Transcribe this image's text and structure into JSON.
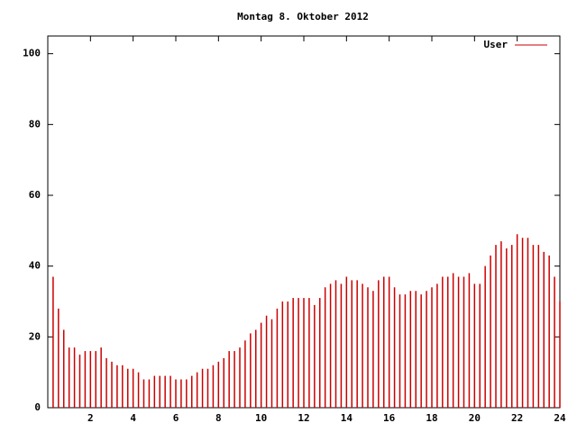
{
  "chart_data": {
    "type": "impulse",
    "title": "Montag 8. Oktober 2012",
    "x": [
      0.25,
      0.5,
      0.75,
      1,
      1.25,
      1.5,
      1.75,
      2,
      2.25,
      2.5,
      2.75,
      3,
      3.25,
      3.5,
      3.75,
      4,
      4.25,
      4.5,
      4.75,
      5,
      5.25,
      5.5,
      5.75,
      6,
      6.25,
      6.5,
      6.75,
      7,
      7.25,
      7.5,
      7.75,
      8,
      8.25,
      8.5,
      8.75,
      9,
      9.25,
      9.5,
      9.75,
      10,
      10.25,
      10.5,
      10.75,
      11,
      11.25,
      11.5,
      11.75,
      12,
      12.25,
      12.5,
      12.75,
      13,
      13.25,
      13.5,
      13.75,
      14,
      14.25,
      14.5,
      14.75,
      15,
      15.25,
      15.5,
      15.75,
      16,
      16.25,
      16.5,
      16.75,
      17,
      17.25,
      17.5,
      17.75,
      18,
      18.25,
      18.5,
      18.75,
      19,
      19.25,
      19.5,
      19.75,
      20,
      20.25,
      20.5,
      20.75,
      21,
      21.25,
      21.5,
      21.75,
      22,
      22.25,
      22.5,
      22.75,
      23,
      23.25,
      23.5,
      23.75,
      24
    ],
    "series": [
      {
        "name": "User",
        "color": "#cc0000",
        "values": [
          37,
          28,
          22,
          17,
          17,
          15,
          16,
          16,
          16,
          17,
          14,
          13,
          12,
          12,
          11,
          11,
          10,
          8,
          8,
          9,
          9,
          9,
          9,
          8,
          8,
          8,
          9,
          10,
          11,
          11,
          12,
          13,
          14,
          16,
          16,
          17,
          19,
          21,
          22,
          24,
          26,
          25,
          28,
          30,
          30,
          31,
          31,
          31,
          31,
          29,
          31,
          34,
          35,
          36,
          35,
          37,
          36,
          36,
          35,
          34,
          33,
          36,
          37,
          37,
          34,
          32,
          32,
          33,
          33,
          32,
          33,
          34,
          35,
          37,
          37,
          38,
          37,
          37,
          38,
          35,
          35,
          40,
          43,
          46,
          47,
          45,
          46,
          49,
          48,
          48,
          46,
          46,
          44,
          43,
          37,
          30
        ]
      }
    ],
    "xlim": [
      0,
      24
    ],
    "xticks": [
      2,
      4,
      6,
      8,
      10,
      12,
      14,
      16,
      18,
      20,
      22,
      24
    ],
    "ylim": [
      0,
      105
    ],
    "yticks": [
      0,
      20,
      40,
      60,
      80,
      100
    ],
    "legend": "top-right"
  }
}
